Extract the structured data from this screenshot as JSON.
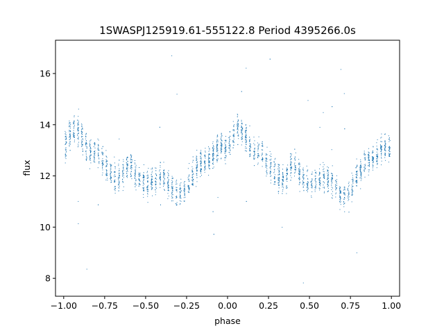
{
  "chart_data": {
    "type": "scatter",
    "title": "1SWASPJ125919.61-555122.8 Period 4395266.0s",
    "xlabel": "phase",
    "ylabel": "flux",
    "xlim": [
      -1.05,
      1.05
    ],
    "ylim": [
      7.3,
      17.3
    ],
    "x_ticks": [
      -1.0,
      -0.75,
      -0.5,
      -0.25,
      0.0,
      0.25,
      0.5,
      0.75,
      1.0
    ],
    "x_tick_labels": [
      "−1.00",
      "−0.75",
      "−0.50",
      "−0.25",
      "0.00",
      "0.25",
      "0.50",
      "0.75",
      "1.00"
    ],
    "y_ticks": [
      8,
      10,
      12,
      14,
      16
    ],
    "y_tick_labels": [
      "8",
      "10",
      "12",
      "14",
      "16"
    ],
    "grid": false,
    "marker_color": "#1f77b4",
    "series": [
      {
        "profile_x": [
          0.0,
          0.05,
          0.1,
          0.15,
          0.2,
          0.25,
          0.3,
          0.35,
          0.4,
          0.45,
          0.5,
          0.55,
          0.6,
          0.65,
          0.7,
          0.75,
          0.8,
          0.85,
          0.9,
          0.95,
          1.0
        ],
        "profile_flux": [
          13.0,
          13.8,
          13.7,
          12.9,
          13.0,
          12.5,
          12.0,
          11.8,
          12.6,
          11.9,
          11.7,
          11.8,
          12.0,
          11.6,
          11.2,
          11.4,
          12.2,
          12.6,
          12.7,
          13.2,
          13.0
        ],
        "profile_spread": [
          0.8,
          0.9,
          0.9,
          0.9,
          0.9,
          0.9,
          0.9,
          0.9,
          0.9,
          0.8,
          0.8,
          0.8,
          0.8,
          0.8,
          0.8,
          0.8,
          0.8,
          0.8,
          0.8,
          0.8,
          0.8
        ],
        "x_range": [
          -1.0,
          1.0
        ],
        "y_range_outliers": [
          7.8,
          16.8
        ]
      }
    ]
  }
}
